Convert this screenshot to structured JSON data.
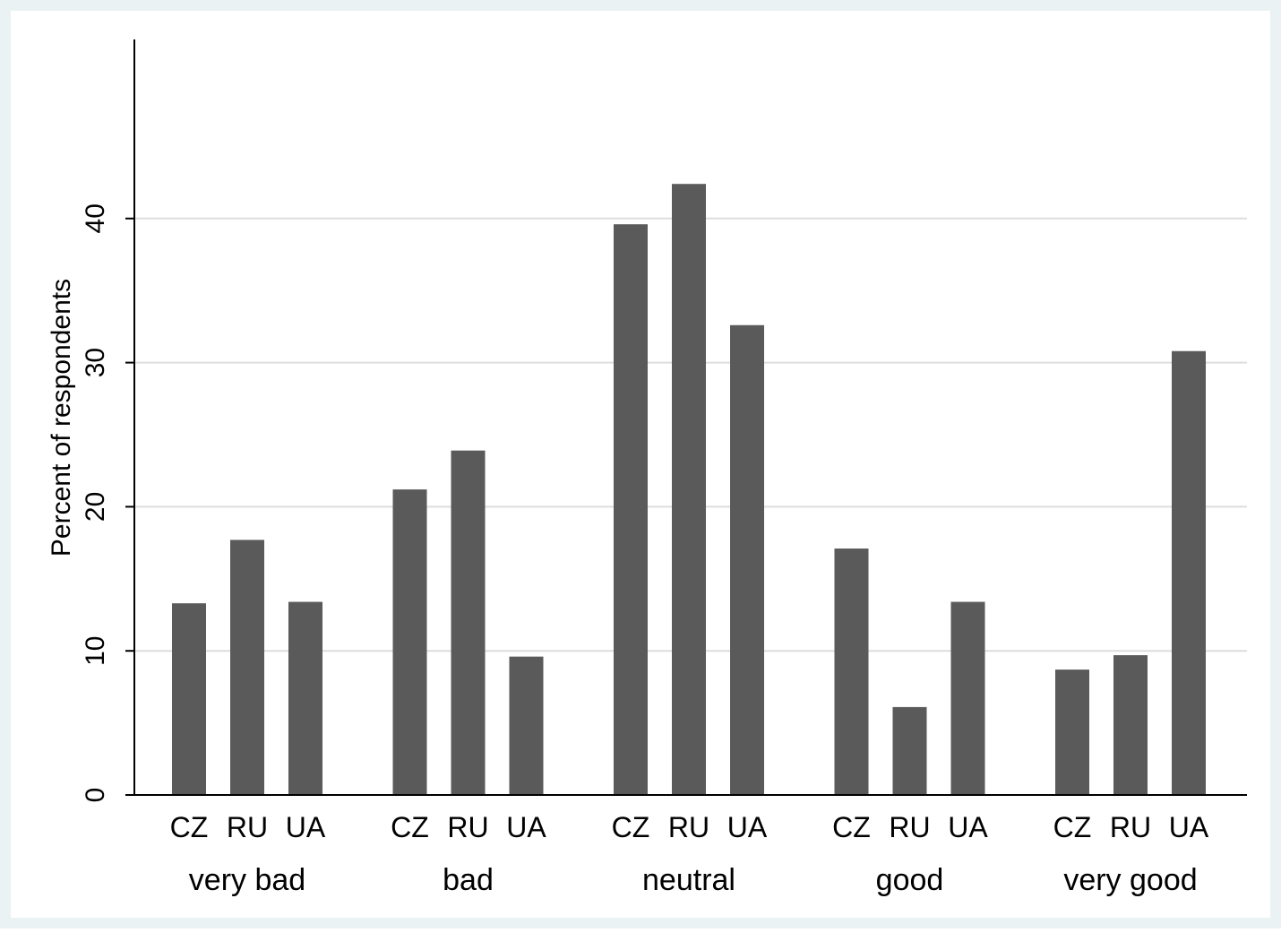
{
  "colors": {
    "outer_background": "#eaf2f3",
    "plot_background": "#ffffff",
    "bar_fill": "#5a5a5a",
    "gridline": "#dddddd",
    "axis": "#000000"
  },
  "chart_data": {
    "type": "bar",
    "title": "",
    "xlabel": "",
    "ylabel": "Percent of respondents",
    "ylim": [
      0,
      52
    ],
    "yticks": [
      0,
      10,
      20,
      30,
      40
    ],
    "grid": true,
    "groups": [
      {
        "label": "very bad",
        "bars": [
          {
            "label": "CZ",
            "value": 13.3
          },
          {
            "label": "RU",
            "value": 17.7
          },
          {
            "label": "UA",
            "value": 13.4
          }
        ]
      },
      {
        "label": "bad",
        "bars": [
          {
            "label": "CZ",
            "value": 21.2
          },
          {
            "label": "RU",
            "value": 23.9
          },
          {
            "label": "UA",
            "value": 9.6
          }
        ]
      },
      {
        "label": "neutral",
        "bars": [
          {
            "label": "CZ",
            "value": 39.6
          },
          {
            "label": "RU",
            "value": 42.4
          },
          {
            "label": "UA",
            "value": 32.6
          }
        ]
      },
      {
        "label": "good",
        "bars": [
          {
            "label": "CZ",
            "value": 17.1
          },
          {
            "label": "RU",
            "value": 6.1
          },
          {
            "label": "UA",
            "value": 13.4
          }
        ]
      },
      {
        "label": "very good",
        "bars": [
          {
            "label": "CZ",
            "value": 8.7
          },
          {
            "label": "RU",
            "value": 9.7
          },
          {
            "label": "UA",
            "value": 30.8
          }
        ]
      }
    ]
  }
}
